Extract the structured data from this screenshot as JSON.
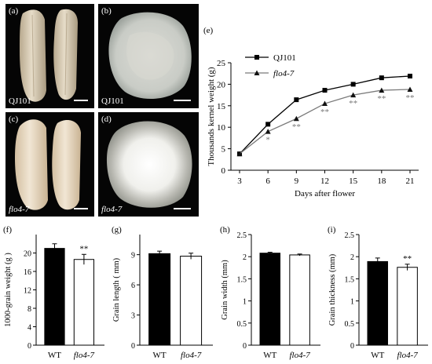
{
  "photos": [
    {
      "panel": "(a)",
      "label": "QJ101",
      "italic": false
    },
    {
      "panel": "(b)",
      "label": "QJ101",
      "italic": false
    },
    {
      "panel": "(c)",
      "label": "flo4-7",
      "italic": true
    },
    {
      "panel": "(d)",
      "label": "flo4-7",
      "italic": true
    }
  ],
  "chart_data": [
    {
      "panel": "(e)",
      "type": "line",
      "xlabel": "Days after flower",
      "ylabel": "Thousands kernel weight (g)",
      "x": [
        3,
        6,
        9,
        12,
        15,
        18,
        21
      ],
      "xticks": [
        "3",
        "6",
        "9",
        "12",
        "15",
        "18",
        "21"
      ],
      "ylim": [
        0,
        25
      ],
      "yticks": [
        "0",
        "5",
        "10",
        "15",
        "20",
        "25"
      ],
      "legend": "top-left",
      "series": [
        {
          "name": "QJ101",
          "marker": "square",
          "color": "#000000",
          "values": [
            3.8,
            10.7,
            16.4,
            18.6,
            20.0,
            21.5,
            21.9
          ]
        },
        {
          "name": "flo4-7",
          "marker": "triangle",
          "color": "#7a7a7a",
          "values": [
            3.8,
            9.0,
            12.0,
            15.5,
            17.5,
            18.6,
            18.8
          ]
        }
      ],
      "significance": [
        {
          "x": 6,
          "text": "*"
        },
        {
          "x": 9,
          "text": "**"
        },
        {
          "x": 12,
          "text": "**"
        },
        {
          "x": 15,
          "text": "**"
        },
        {
          "x": 18,
          "text": "**"
        },
        {
          "x": 21,
          "text": "**"
        }
      ]
    },
    {
      "panel": "(f)",
      "type": "bar",
      "ylabel": "1000-grain weight (g )",
      "categories": [
        "WT",
        "flo4-7"
      ],
      "values": [
        21.0,
        18.6
      ],
      "errors": [
        1.0,
        1.1
      ],
      "ylim": [
        0,
        24
      ],
      "yticks": [
        "0",
        "4",
        "8",
        "12",
        "16",
        "20"
      ],
      "significance": [
        {
          "index": 1,
          "text": "**"
        }
      ]
    },
    {
      "panel": "(g)",
      "type": "bar",
      "ylabel": "Grain length ( mm)",
      "categories": [
        "WT",
        "flo4-7"
      ],
      "values": [
        9.1,
        8.85
      ],
      "errors": [
        0.25,
        0.3
      ],
      "ylim": [
        0,
        11
      ],
      "yticks": [
        "0",
        "3",
        "6",
        "9"
      ],
      "significance": []
    },
    {
      "panel": "(h)",
      "type": "bar",
      "ylabel": "Grain width (mm)",
      "categories": [
        "WT",
        "flo4-7"
      ],
      "values": [
        2.08,
        2.04
      ],
      "errors": [
        0.02,
        0.02
      ],
      "ylim": [
        0,
        2.5
      ],
      "yticks": [
        "0",
        "0.5",
        "1",
        "1.5",
        "2",
        "2.5"
      ],
      "significance": []
    },
    {
      "panel": "(i)",
      "type": "bar",
      "ylabel": "Grain thickness (mm)",
      "categories": [
        "WT",
        "flo4-7"
      ],
      "values": [
        1.89,
        1.76
      ],
      "errors": [
        0.08,
        0.07
      ],
      "ylim": [
        0,
        2.5
      ],
      "yticks": [
        "0",
        "0.5",
        "1",
        "1.5",
        "2",
        "2.5"
      ],
      "significance": [
        {
          "index": 1,
          "text": "**"
        }
      ]
    }
  ]
}
